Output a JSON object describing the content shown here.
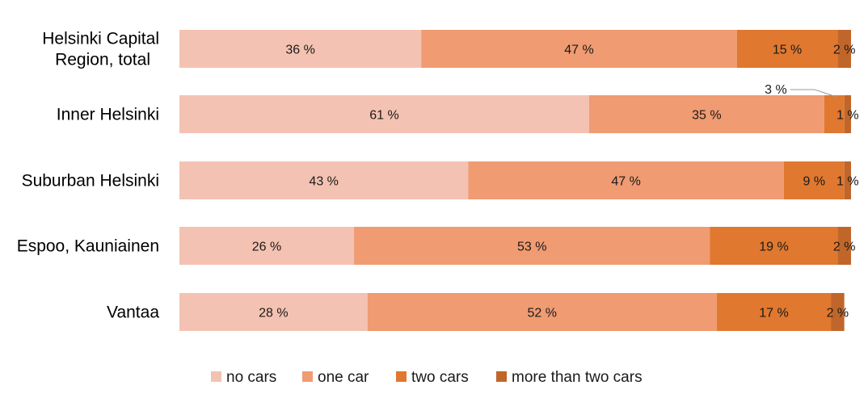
{
  "chart_data": {
    "type": "bar",
    "orientation": "horizontal",
    "stacked": "percent",
    "categories": [
      "Helsinki Capital Region, total",
      "Inner Helsinki",
      "Suburban Helsinki",
      "Espoo, Kauniainen",
      "Vantaa"
    ],
    "series": [
      {
        "name": "no cars",
        "color": "#f4c2b2",
        "values": [
          36,
          61,
          43,
          26,
          28
        ],
        "labels": [
          "36 %",
          "61 %",
          "43 %",
          "26 %",
          "28 %"
        ]
      },
      {
        "name": "one car",
        "color": "#f09b72",
        "values": [
          47,
          35,
          47,
          53,
          52
        ],
        "labels": [
          "47 %",
          "35 %",
          "47 %",
          "53 %",
          "52 %"
        ]
      },
      {
        "name": "two cars",
        "color": "#e0782f",
        "values": [
          15,
          3,
          9,
          19,
          17
        ],
        "labels": [
          "15 %",
          "3 %",
          "9 %",
          "19 %",
          "17 %"
        ]
      },
      {
        "name": "more than two cars",
        "color": "#c0662b",
        "values": [
          2,
          1,
          1,
          2,
          2
        ],
        "labels": [
          "2 %",
          "1 %",
          "1 %",
          "2 %",
          "2 %"
        ]
      }
    ],
    "xlim": [
      0,
      100
    ],
    "grid": false,
    "legend": "bottom",
    "title": "",
    "xlabel": "",
    "ylabel": ""
  }
}
